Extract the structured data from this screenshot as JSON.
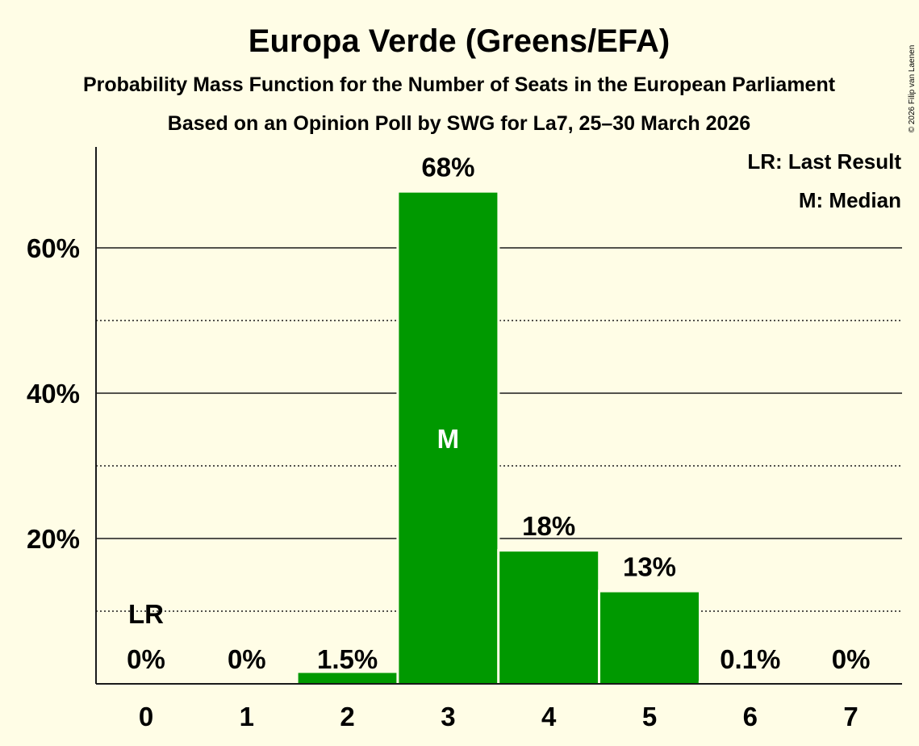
{
  "chart_data": {
    "type": "bar",
    "title": "Europa Verde (Greens/EFA)",
    "subtitle": "Probability Mass Function for the Number of Seats in the European Parliament",
    "subtitle2": "Based on an Opinion Poll by SWG for La7, 25–30 March 2026",
    "copyright": "© 2026 Filip van Laenen",
    "categories": [
      "0",
      "1",
      "2",
      "3",
      "4",
      "5",
      "6",
      "7"
    ],
    "values": [
      0,
      0,
      1.5,
      67.6,
      18.2,
      12.6,
      0.1,
      0
    ],
    "value_labels": [
      "0%",
      "0%",
      "1.5%",
      "68%",
      "18%",
      "13%",
      "0.1%",
      "0%"
    ],
    "y_ticks": [
      20,
      40,
      60
    ],
    "y_tick_labels": [
      "20%",
      "40%",
      "60%"
    ],
    "y_minor_ticks": [
      10,
      30,
      50
    ],
    "ylim": [
      0,
      74
    ],
    "bar_color": "#009900",
    "last_result_index": 0,
    "last_result_marker": "LR",
    "median_index": 3,
    "median_marker": "M",
    "legend": [
      "LR: Last Result",
      "M: Median"
    ]
  }
}
